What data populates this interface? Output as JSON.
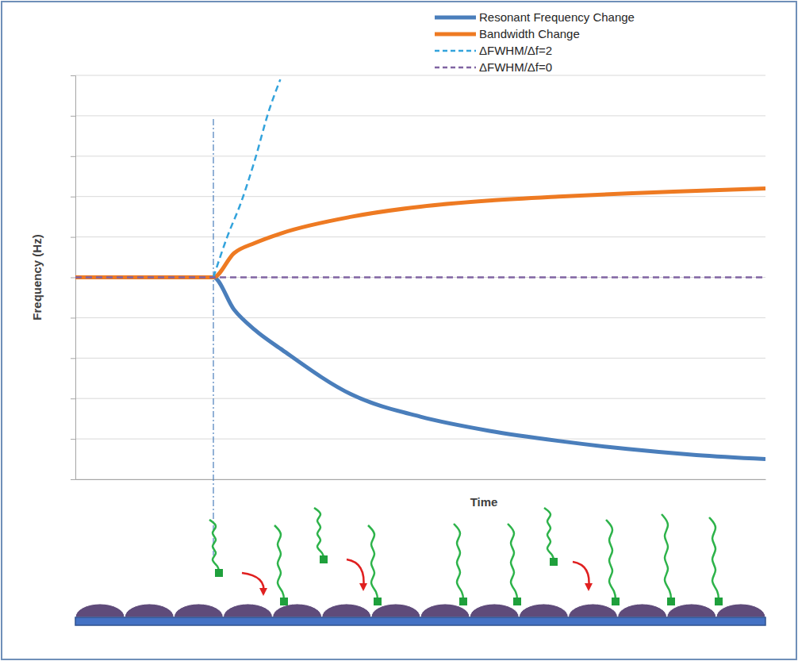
{
  "chart_data": {
    "type": "line",
    "x_label": "Time",
    "y_label": "Frequency (Hz)",
    "xlim": [
      0,
      10
    ],
    "ylim": [
      0,
      10
    ],
    "yticks": [
      0,
      1,
      2,
      3,
      4,
      5,
      6,
      7,
      8,
      9,
      10
    ],
    "grid": true,
    "tick_labels": false,
    "legend": "top-right",
    "event_time": 2,
    "series": [
      {
        "name": "Resonant Frequency Change",
        "color": "#4a7ebb",
        "line_style": "solid",
        "x": [
          0,
          2,
          2.3,
          2.6,
          3,
          4,
          5,
          6,
          7,
          8,
          9,
          10
        ],
        "values": [
          5,
          5,
          4.2,
          3.7,
          3.2,
          2.1,
          1.55,
          1.2,
          0.95,
          0.75,
          0.6,
          0.5
        ]
      },
      {
        "name": "Bandwidth Change",
        "color": "#ee7a22",
        "line_style": "solid",
        "x": [
          0,
          2,
          2.3,
          2.6,
          3,
          4,
          5,
          6,
          7,
          8,
          9,
          10
        ],
        "values": [
          5,
          5,
          5.6,
          5.85,
          6.1,
          6.5,
          6.75,
          6.9,
          7.0,
          7.08,
          7.14,
          7.2
        ]
      },
      {
        "name": "ΔFWHM/Δf=2",
        "color": "#33a3dc",
        "line_style": "dashed",
        "x": [
          2,
          2.2,
          2.4,
          2.6,
          2.8,
          2.97
        ],
        "values": [
          5,
          6.0,
          6.85,
          7.9,
          9.1,
          9.9
        ]
      },
      {
        "name": "ΔFWHM/Δf=0",
        "color": "#8064a2",
        "line_style": "dashed",
        "x": [
          0,
          10
        ],
        "values": [
          5,
          5
        ]
      }
    ]
  }
}
